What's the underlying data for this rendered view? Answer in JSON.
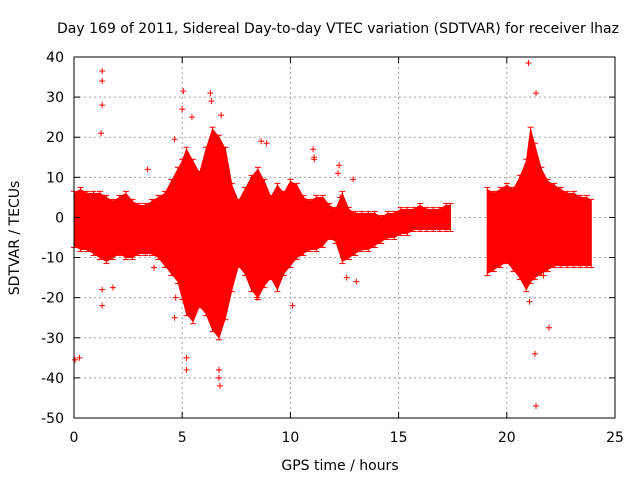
{
  "chart_data": {
    "type": "scatter",
    "title": "Day 169 of 2011, Sidereal Day-to-day VTEC variation (SDTVAR) for receiver lhaz",
    "xlabel": "GPS time / hours",
    "ylabel": "SDTVAR / TECUs",
    "xlim": [
      0,
      25
    ],
    "ylim": [
      -50,
      40
    ],
    "xticks": [
      0,
      5,
      10,
      15,
      20,
      25
    ],
    "yticks": [
      -50,
      -40,
      -30,
      -20,
      -10,
      0,
      10,
      20,
      30,
      40
    ],
    "grid": true,
    "color": "#ff0000",
    "marker": "plus",
    "envelope": {
      "x": [
        0.0,
        0.3,
        0.6,
        0.9,
        1.2,
        1.5,
        1.8,
        2.1,
        2.4,
        2.7,
        3.0,
        3.3,
        3.6,
        3.9,
        4.2,
        4.5,
        4.8,
        5.0,
        5.2,
        5.5,
        5.8,
        6.1,
        6.4,
        6.7,
        7.0,
        7.3,
        7.6,
        7.9,
        8.2,
        8.5,
        8.8,
        9.1,
        9.4,
        9.7,
        10.0,
        10.3,
        10.6,
        10.9,
        11.2,
        11.5,
        11.8,
        12.1,
        12.4,
        12.7,
        13.0,
        13.3,
        13.6,
        13.9,
        14.2,
        14.5,
        14.8,
        15.1,
        15.4,
        15.7,
        16.0,
        16.3,
        16.6,
        16.9,
        17.2,
        17.4
      ],
      "high": [
        6,
        7,
        6,
        6,
        6,
        5,
        4,
        5,
        6,
        4,
        3,
        3,
        4,
        5,
        6,
        9,
        12,
        14,
        17,
        14,
        11,
        17,
        22,
        20,
        17,
        8,
        4,
        7,
        10,
        12,
        9,
        5,
        8,
        6,
        9,
        8,
        5,
        4,
        5,
        5,
        3,
        2,
        6,
        2,
        1,
        1,
        1,
        1,
        0,
        1,
        1,
        2,
        2,
        2,
        3,
        2,
        2,
        2,
        3,
        3
      ],
      "low": [
        -7,
        -8,
        -8,
        -9,
        -10,
        -11,
        -10,
        -9,
        -10,
        -10,
        -9,
        -9,
        -9,
        -10,
        -12,
        -14,
        -16,
        -20,
        -24,
        -26,
        -22,
        -24,
        -28,
        -30,
        -25,
        -18,
        -12,
        -14,
        -18,
        -20,
        -17,
        -15,
        -18,
        -14,
        -12,
        -10,
        -9,
        -8,
        -8,
        -7,
        -5,
        -6,
        -11,
        -10,
        -9,
        -8,
        -8,
        -7,
        -6,
        -5,
        -5,
        -4,
        -4,
        -3,
        -3,
        -3,
        -3,
        -3,
        -3,
        -3
      ]
    },
    "envelope2": {
      "x": [
        19.1,
        19.4,
        19.7,
        20.0,
        20.3,
        20.6,
        20.9,
        21.1,
        21.3,
        21.6,
        21.9,
        22.2,
        22.5,
        22.8,
        23.1,
        23.4,
        23.7,
        23.9
      ],
      "high": [
        7,
        6,
        7,
        8,
        7,
        10,
        14,
        22,
        18,
        12,
        9,
        8,
        7,
        6,
        6,
        5,
        5,
        4
      ],
      "low": [
        -14,
        -13,
        -12,
        -11,
        -13,
        -15,
        -18,
        -16,
        -15,
        -14,
        -13,
        -12,
        -12,
        -12,
        -12,
        -12,
        -12,
        -12
      ]
    },
    "outliers": [
      [
        0.05,
        -35.5
      ],
      [
        0.25,
        -35
      ],
      [
        1.3,
        36.5
      ],
      [
        1.3,
        34
      ],
      [
        1.3,
        28
      ],
      [
        1.25,
        21
      ],
      [
        1.3,
        -22
      ],
      [
        1.3,
        -18
      ],
      [
        1.8,
        -17.5
      ],
      [
        3.4,
        12
      ],
      [
        3.7,
        -12.5
      ],
      [
        4.65,
        19.5
      ],
      [
        4.65,
        -25
      ],
      [
        4.7,
        -20
      ],
      [
        5.05,
        31.5
      ],
      [
        5.0,
        27
      ],
      [
        5.2,
        -38
      ],
      [
        5.2,
        -35
      ],
      [
        5.45,
        25
      ],
      [
        6.3,
        31
      ],
      [
        6.35,
        29
      ],
      [
        6.7,
        -38
      ],
      [
        6.75,
        -42
      ],
      [
        6.7,
        -40
      ],
      [
        6.8,
        25.5
      ],
      [
        8.45,
        -20
      ],
      [
        8.65,
        19
      ],
      [
        8.9,
        18.5
      ],
      [
        10.1,
        -22
      ],
      [
        11.05,
        17
      ],
      [
        11.1,
        14.5
      ],
      [
        11.1,
        15
      ],
      [
        12.05,
        0
      ],
      [
        12.25,
        13
      ],
      [
        12.2,
        11
      ],
      [
        12.3,
        5
      ],
      [
        12.6,
        -15
      ],
      [
        12.9,
        9.5
      ],
      [
        13.05,
        -16
      ],
      [
        21.0,
        38.5
      ],
      [
        21.35,
        31
      ],
      [
        21.3,
        -34
      ],
      [
        21.35,
        -47
      ],
      [
        21.95,
        -27.5
      ],
      [
        21.05,
        -21
      ],
      [
        21.7,
        -14.5
      ]
    ]
  }
}
